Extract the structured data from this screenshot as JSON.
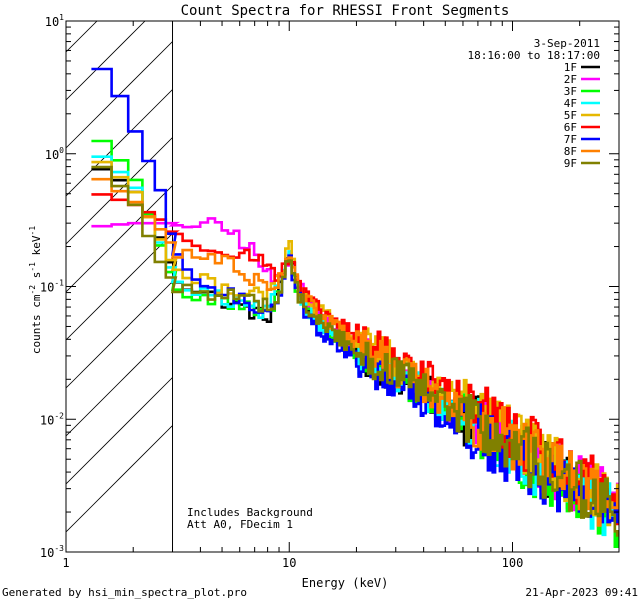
{
  "chart_data": {
    "type": "line",
    "title": "Count Spectra for RHESSI Front Segments",
    "xlabel": "Energy (keV)",
    "ylabel": "counts cm",
    "ylabel_exp1": "-2",
    "ylabel_s": "s",
    "ylabel_exp2": "-1",
    "ylabel_kev": "keV",
    "ylabel_exp3": "-1",
    "xscale": "log",
    "yscale": "log",
    "xlim": [
      1,
      300
    ],
    "ylim": [
      0.001,
      10
    ],
    "x_ticks": [
      {
        "value": 1,
        "label": "1"
      },
      {
        "value": 10,
        "label": "10"
      },
      {
        "value": 100,
        "label": "100"
      }
    ],
    "y_ticks": [
      {
        "value": 0.001,
        "base": "10",
        "exp": "-3"
      },
      {
        "value": 0.01,
        "base": "10",
        "exp": "-2"
      },
      {
        "value": 0.1,
        "base": "10",
        "exp": "-1"
      },
      {
        "value": 1,
        "base": "10",
        "exp": "0"
      },
      {
        "value": 10,
        "base": "10",
        "exp": "1"
      }
    ],
    "date_label": "3-Sep-2011",
    "time_label": "18:16:00 to 18:17:00",
    "hatch_region": {
      "xmin": 1,
      "xmax": 3,
      "description": "attenuator/low-energy excluded region"
    },
    "annotations": [
      "Includes Background",
      "Att A0, FDecim 1"
    ],
    "series": [
      {
        "name": "1F",
        "color": "#000000",
        "anchors": [
          [
            1.3,
            0.85
          ],
          [
            2.0,
            0.55
          ],
          [
            2.6,
            0.25
          ],
          [
            3.2,
            0.11
          ],
          [
            5,
            0.08
          ],
          [
            8,
            0.058
          ],
          [
            9,
            0.09
          ],
          [
            10,
            0.19
          ],
          [
            11,
            0.09
          ],
          [
            13,
            0.06
          ],
          [
            20,
            0.032
          ],
          [
            40,
            0.016
          ],
          [
            80,
            0.008
          ],
          [
            150,
            0.004
          ],
          [
            250,
            0.0024
          ],
          [
            300,
            0.0018
          ]
        ]
      },
      {
        "name": "2F",
        "color": "#ff00ff",
        "anchors": [
          [
            1.3,
            0.28
          ],
          [
            2.0,
            0.3
          ],
          [
            3.0,
            0.3
          ],
          [
            4,
            0.3
          ],
          [
            5.5,
            0.26
          ],
          [
            7,
            0.18
          ],
          [
            8,
            0.12
          ],
          [
            9,
            0.11
          ],
          [
            10,
            0.18
          ],
          [
            11,
            0.1
          ],
          [
            13,
            0.065
          ],
          [
            20,
            0.035
          ],
          [
            40,
            0.017
          ],
          [
            80,
            0.008
          ],
          [
            150,
            0.0042
          ],
          [
            250,
            0.0026
          ],
          [
            300,
            0.002
          ]
        ]
      },
      {
        "name": "3F",
        "color": "#00ff00",
        "anchors": [
          [
            1.3,
            1.5
          ],
          [
            2.0,
            0.7
          ],
          [
            2.6,
            0.22
          ],
          [
            3.2,
            0.09
          ],
          [
            5,
            0.075
          ],
          [
            8,
            0.062
          ],
          [
            9,
            0.09
          ],
          [
            10,
            0.18
          ],
          [
            11,
            0.085
          ],
          [
            13,
            0.055
          ],
          [
            20,
            0.03
          ],
          [
            40,
            0.015
          ],
          [
            80,
            0.007
          ],
          [
            150,
            0.0035
          ],
          [
            250,
            0.0022
          ],
          [
            300,
            0.0017
          ]
        ]
      },
      {
        "name": "4F",
        "color": "#00ffff",
        "anchors": [
          [
            1.3,
            1.1
          ],
          [
            2.0,
            0.6
          ],
          [
            2.6,
            0.23
          ],
          [
            3.2,
            0.1
          ],
          [
            5,
            0.08
          ],
          [
            8,
            0.063
          ],
          [
            9,
            0.1
          ],
          [
            10,
            0.2
          ],
          [
            11,
            0.09
          ],
          [
            13,
            0.058
          ],
          [
            20,
            0.031
          ],
          [
            40,
            0.016
          ],
          [
            80,
            0.0075
          ],
          [
            150,
            0.0037
          ],
          [
            250,
            0.0023
          ],
          [
            300,
            0.0017
          ]
        ]
      },
      {
        "name": "5F",
        "color": "#e6b800",
        "anchors": [
          [
            1.3,
            1.0
          ],
          [
            2.0,
            0.55
          ],
          [
            2.6,
            0.24
          ],
          [
            3.2,
            0.12
          ],
          [
            5,
            0.1
          ],
          [
            8,
            0.09
          ],
          [
            9,
            0.11
          ],
          [
            10,
            0.21
          ],
          [
            11,
            0.1
          ],
          [
            13,
            0.07
          ],
          [
            20,
            0.04
          ],
          [
            40,
            0.02
          ],
          [
            80,
            0.0095
          ],
          [
            150,
            0.0045
          ],
          [
            250,
            0.0027
          ],
          [
            300,
            0.002
          ]
        ]
      },
      {
        "name": "6F",
        "color": "#ff0000",
        "anchors": [
          [
            1.3,
            0.52
          ],
          [
            2.0,
            0.42
          ],
          [
            2.6,
            0.33
          ],
          [
            3.2,
            0.22
          ],
          [
            5,
            0.2
          ],
          [
            8,
            0.15
          ],
          [
            9,
            0.12
          ],
          [
            10,
            0.17
          ],
          [
            11,
            0.1
          ],
          [
            13,
            0.07
          ],
          [
            20,
            0.042
          ],
          [
            40,
            0.021
          ],
          [
            80,
            0.01
          ],
          [
            150,
            0.005
          ],
          [
            250,
            0.003
          ],
          [
            300,
            0.0022
          ]
        ]
      },
      {
        "name": "7F",
        "color": "#0000ff",
        "anchors": [
          [
            1.3,
            5.5
          ],
          [
            1.7,
            3.0
          ],
          [
            2.0,
            1.6
          ],
          [
            2.6,
            0.6
          ],
          [
            3.2,
            0.14
          ],
          [
            5,
            0.09
          ],
          [
            8,
            0.065
          ],
          [
            9,
            0.09
          ],
          [
            10,
            0.17
          ],
          [
            11,
            0.08
          ],
          [
            13,
            0.05
          ],
          [
            20,
            0.028
          ],
          [
            40,
            0.014
          ],
          [
            80,
            0.0068
          ],
          [
            150,
            0.0034
          ],
          [
            250,
            0.0021
          ],
          [
            300,
            0.0015
          ]
        ]
      },
      {
        "name": "8F",
        "color": "#ff8000",
        "anchors": [
          [
            1.3,
            0.72
          ],
          [
            2.0,
            0.45
          ],
          [
            2.6,
            0.28
          ],
          [
            3.2,
            0.18
          ],
          [
            5,
            0.16
          ],
          [
            8,
            0.1
          ],
          [
            9,
            0.11
          ],
          [
            10,
            0.19
          ],
          [
            11,
            0.1
          ],
          [
            13,
            0.065
          ],
          [
            20,
            0.037
          ],
          [
            40,
            0.018
          ],
          [
            80,
            0.0087
          ],
          [
            150,
            0.0042
          ],
          [
            250,
            0.0025
          ],
          [
            300,
            0.0019
          ]
        ]
      },
      {
        "name": "9F",
        "color": "#808000",
        "anchors": [
          [
            1.3,
            0.95
          ],
          [
            2.0,
            0.45
          ],
          [
            2.6,
            0.16
          ],
          [
            3.2,
            0.095
          ],
          [
            5,
            0.09
          ],
          [
            8,
            0.072
          ],
          [
            9,
            0.085
          ],
          [
            10,
            0.16
          ],
          [
            11,
            0.085
          ],
          [
            13,
            0.058
          ],
          [
            20,
            0.033
          ],
          [
            40,
            0.016
          ],
          [
            80,
            0.0078
          ],
          [
            150,
            0.0039
          ],
          [
            250,
            0.0024
          ],
          [
            300,
            0.0017
          ]
        ]
      }
    ]
  },
  "footer": {
    "generated_by": "Generated by hsi_min_spectra_plot.pro",
    "timestamp": "21-Apr-2023 09:41"
  }
}
